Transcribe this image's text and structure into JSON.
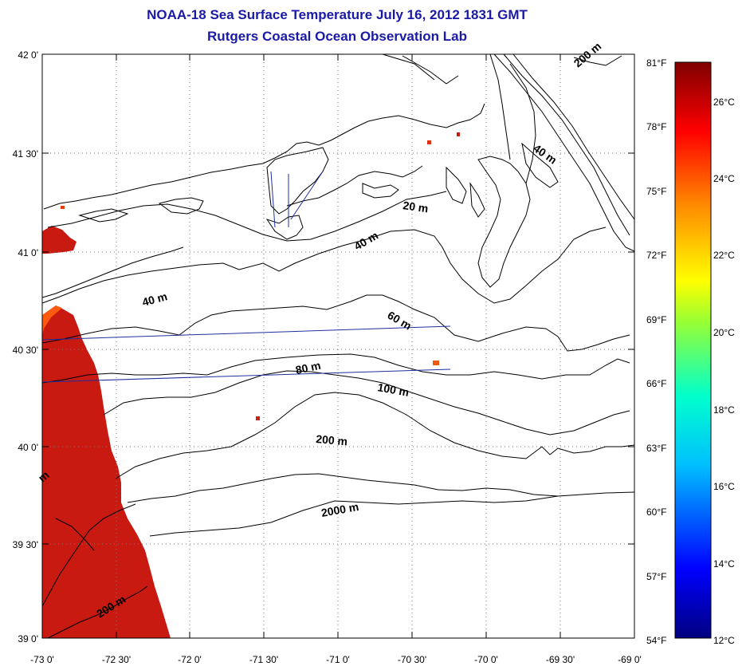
{
  "title": "NOAA-18 Sea Surface Temperature July 16, 2012 1831 GMT",
  "subtitle": "Rutgers Coastal Ocean Observation Lab",
  "axes": {
    "latitude_labels": [
      "42 0'",
      "41 30'",
      "41 0'",
      "40 30'",
      "40 0'",
      "39 30'",
      "39 0'"
    ],
    "longitude_labels": [
      "-73 0'",
      "-72 30'",
      "-72 0'",
      "-71 30'",
      "-71 0'",
      "-70 30'",
      "-70 0'",
      "-69 30'",
      "-69 0'"
    ]
  },
  "colorbar": {
    "fahrenheit_labels": [
      "81°F",
      "78°F",
      "75°F",
      "72°F",
      "69°F",
      "66°F",
      "63°F",
      "60°F",
      "57°F",
      "54°F"
    ],
    "celsius_labels": [
      "26°C",
      "24°C",
      "22°C",
      "20°C",
      "18°C",
      "16°C",
      "14°C",
      "12°C"
    ]
  },
  "contour_labels": {
    "c20": "20 m",
    "c40a": "40 m",
    "c40b": "40 m",
    "c40c": "40 m",
    "c60": "60 m",
    "c80": "80 m",
    "c100": "100 m",
    "c200a": "200 m",
    "c200b": "200 m",
    "c200c": "200 m",
    "c2000": "2000 m",
    "cedge": "m"
  },
  "colors": {
    "title": "#1a1aa6",
    "sst_warm": "#c81a10",
    "transect": "#1f2fa0"
  }
}
